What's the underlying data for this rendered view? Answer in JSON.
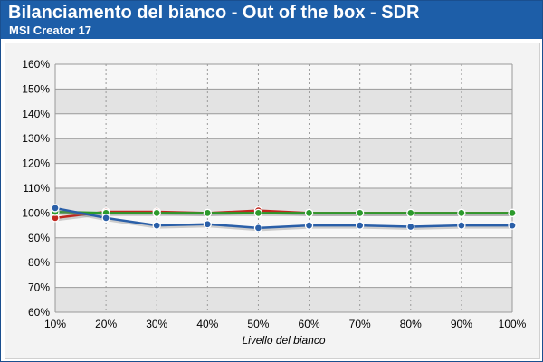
{
  "header": {
    "title": "Bilanciamento del bianco - Out of the box - SDR",
    "subtitle": "MSI Creator 17"
  },
  "colors": {
    "header_bg": "#1d5ea8",
    "band_dark": "#e3e3e3",
    "band_light": "#f7f7f7",
    "grid": "#9a9a9a"
  },
  "chart_data": {
    "type": "line",
    "title": "Bilanciamento del bianco - Out of the box - SDR",
    "subtitle": "MSI Creator 17",
    "xlabel": "Livello del bianco",
    "ylabel": "",
    "x": [
      "10%",
      "20%",
      "30%",
      "40%",
      "50%",
      "60%",
      "70%",
      "80%",
      "90%",
      "100%"
    ],
    "ylim": [
      60,
      160
    ],
    "yticks": [
      60,
      70,
      80,
      90,
      100,
      110,
      120,
      130,
      140,
      150,
      160
    ],
    "yticks_labels": [
      "60%",
      "70%",
      "80%",
      "90%",
      "100%",
      "110%",
      "120%",
      "130%",
      "140%",
      "150%",
      "160%"
    ],
    "grid": true,
    "legend": "none",
    "series": [
      {
        "color": "#c0261e",
        "values": [
          98,
          100.5,
          100.5,
          100,
          101,
          100,
          100,
          100,
          100,
          100
        ]
      },
      {
        "color": "#2c9a2c",
        "values": [
          100.5,
          100,
          100,
          100,
          100,
          100,
          100,
          100,
          100,
          100
        ]
      },
      {
        "color": "#2a5fa8",
        "values": [
          102,
          98,
          95,
          95.5,
          94,
          95,
          95,
          94.5,
          95,
          95
        ]
      }
    ]
  }
}
